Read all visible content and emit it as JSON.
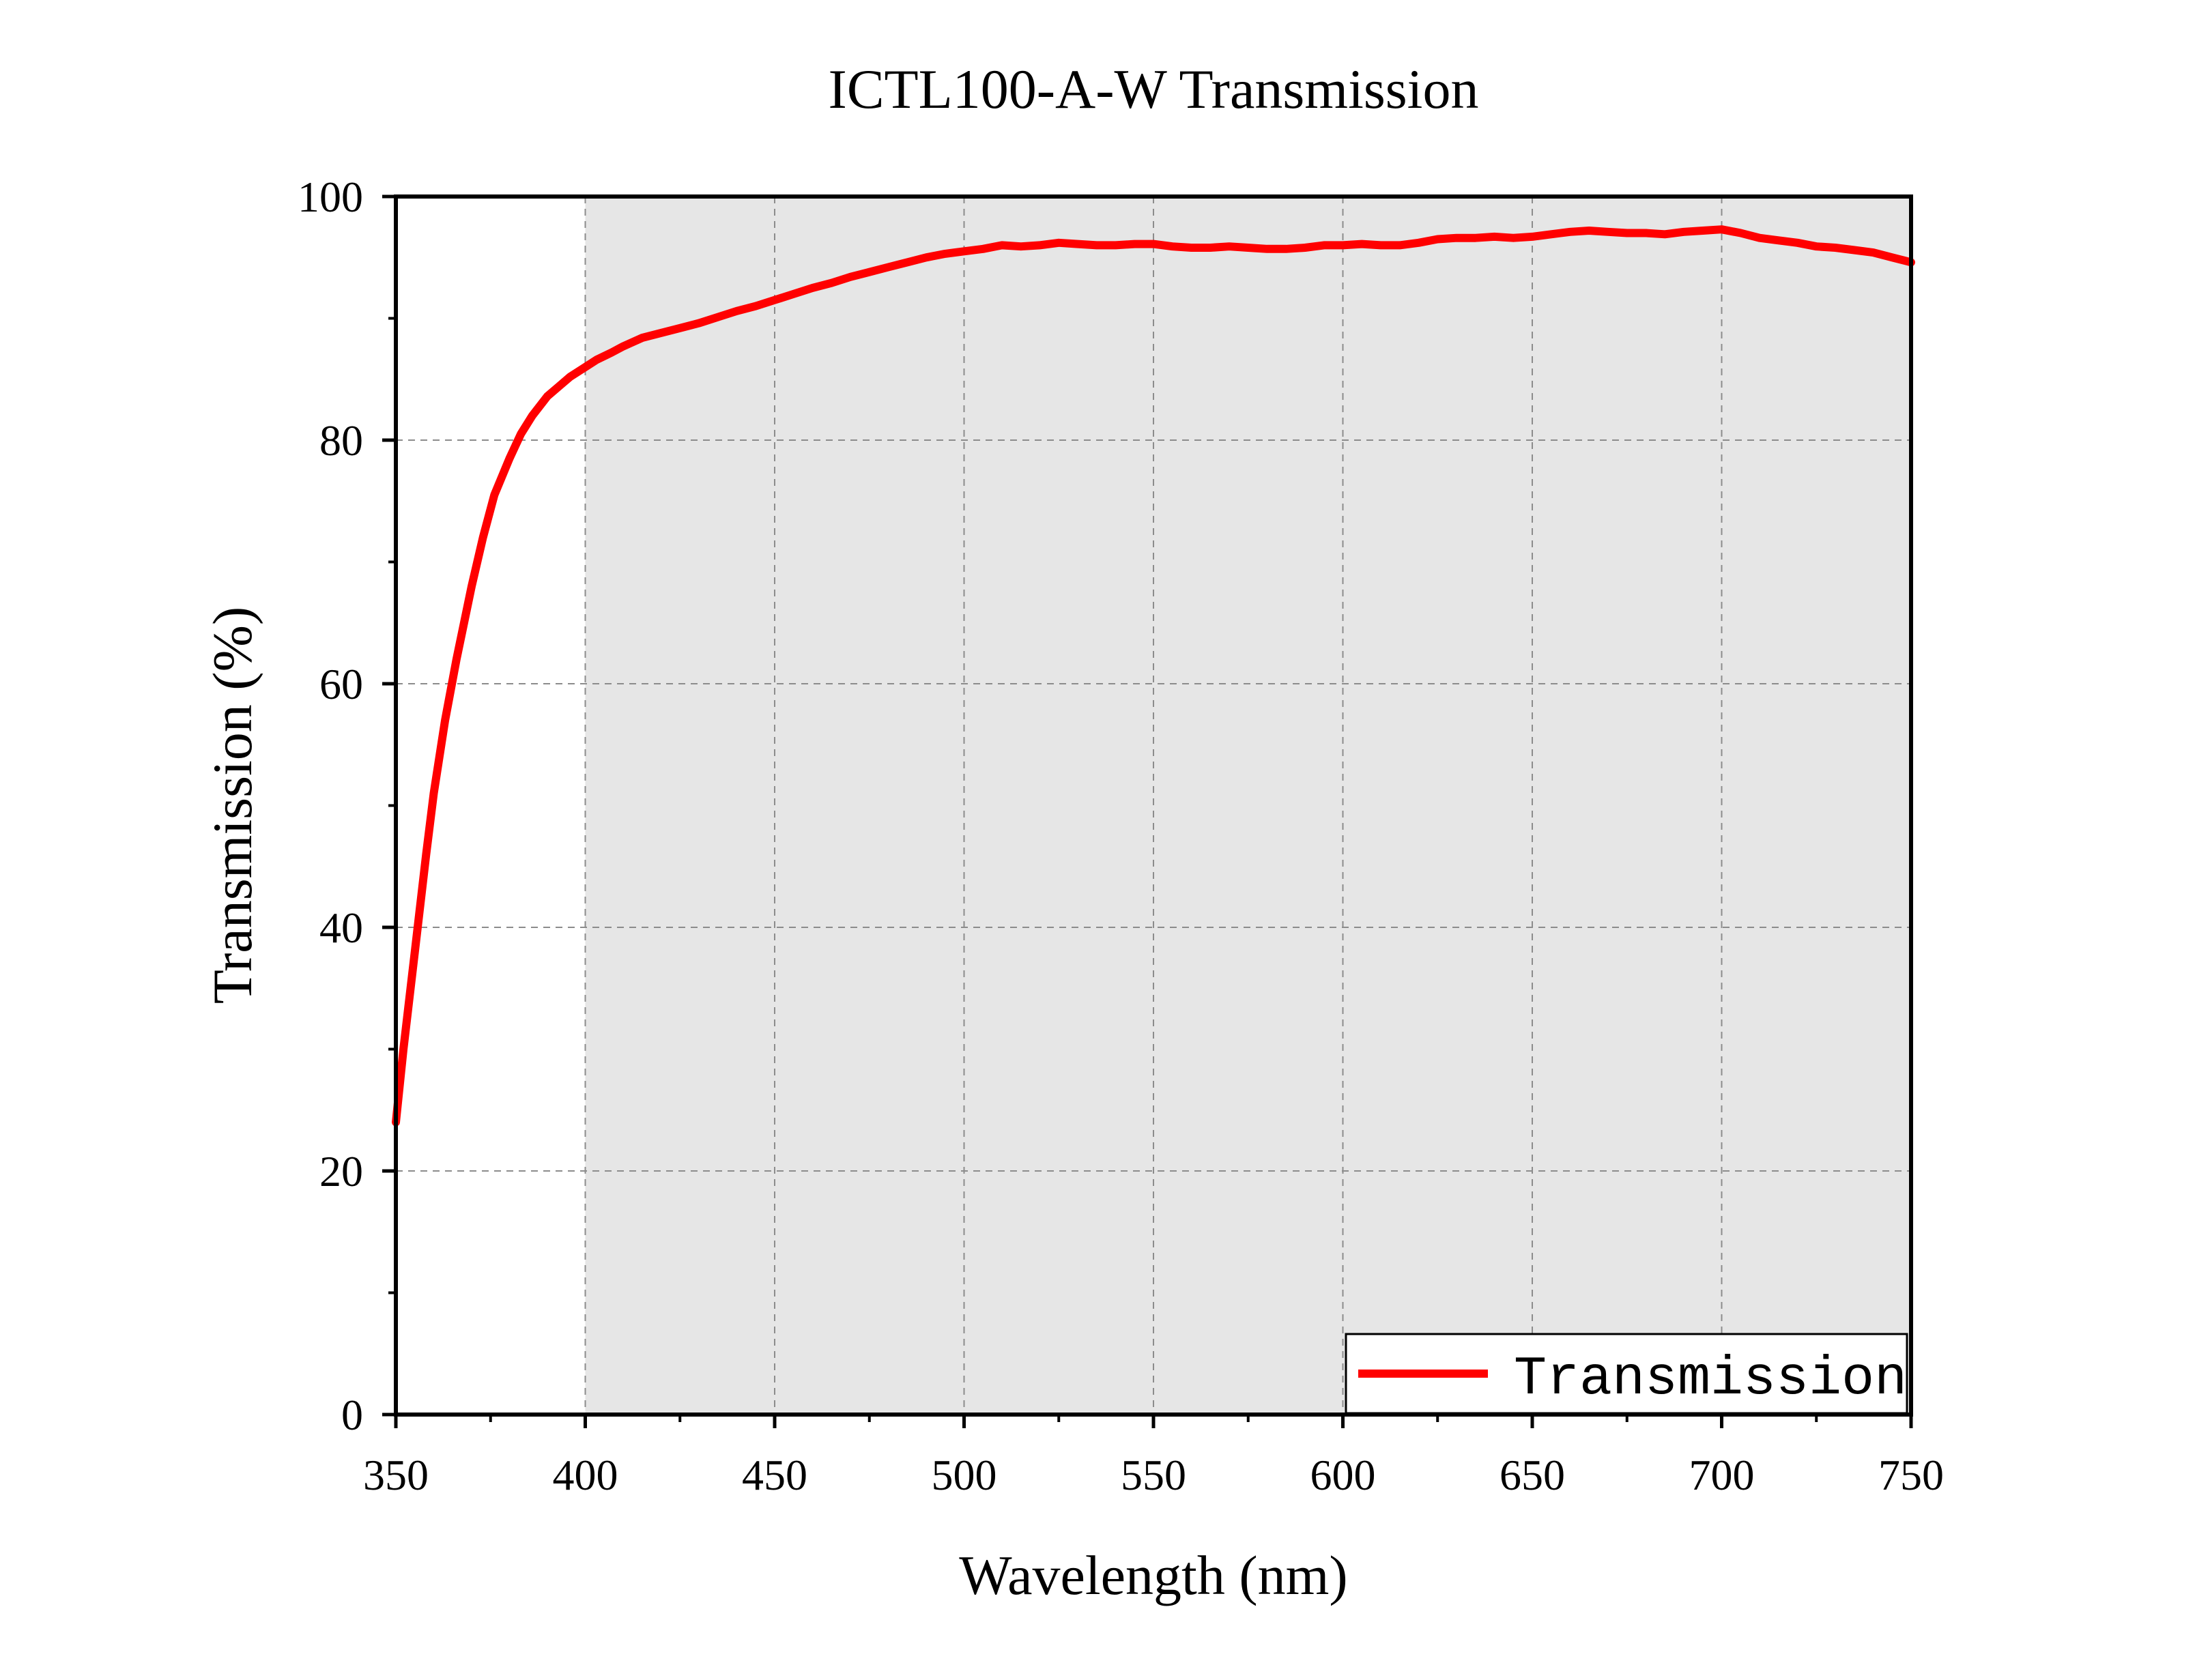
{
  "chart_data": {
    "type": "line",
    "title": "ICTL100-A-W Transmission",
    "xlabel": "Wavelength (nm)",
    "ylabel": "Transmission (%)",
    "xlim": [
      350,
      750
    ],
    "ylim": [
      0,
      100
    ],
    "x_ticks": [
      350,
      400,
      450,
      500,
      550,
      600,
      650,
      700,
      750
    ],
    "y_ticks": [
      0,
      20,
      40,
      60,
      80,
      100
    ],
    "grid": true,
    "shaded_region": {
      "x_from": 400,
      "x_to": 750,
      "color": "#e6e6e6"
    },
    "legend": {
      "placement": "bottom-right"
    },
    "series": [
      {
        "name": "Transmission",
        "color": "#ff0000",
        "x": [
          350,
          352,
          355,
          358,
          360,
          363,
          366,
          370,
          373,
          376,
          380,
          383,
          386,
          390,
          393,
          396,
          400,
          403,
          407,
          410,
          415,
          420,
          425,
          430,
          435,
          440,
          445,
          450,
          455,
          460,
          465,
          470,
          475,
          480,
          485,
          490,
          495,
          500,
          505,
          510,
          515,
          520,
          525,
          530,
          535,
          540,
          545,
          550,
          555,
          560,
          565,
          570,
          575,
          580,
          585,
          590,
          595,
          600,
          605,
          610,
          615,
          620,
          625,
          630,
          635,
          640,
          645,
          650,
          655,
          660,
          665,
          670,
          675,
          680,
          685,
          690,
          695,
          700,
          705,
          710,
          715,
          720,
          725,
          730,
          735,
          740,
          745,
          750
        ],
        "values": [
          24,
          30,
          38,
          46,
          51,
          57,
          62,
          68,
          72,
          75.5,
          78.5,
          80.5,
          82,
          83.6,
          84.4,
          85.2,
          86,
          86.6,
          87.2,
          87.7,
          88.4,
          88.8,
          89.2,
          89.6,
          90.1,
          90.6,
          91,
          91.5,
          92,
          92.5,
          92.9,
          93.4,
          93.8,
          94.2,
          94.6,
          95,
          95.3,
          95.5,
          95.7,
          96,
          95.9,
          96,
          96.2,
          96.1,
          96,
          96,
          96.1,
          96.1,
          95.9,
          95.8,
          95.8,
          95.9,
          95.8,
          95.7,
          95.7,
          95.8,
          96,
          96,
          96.1,
          96,
          96,
          96.2,
          96.5,
          96.6,
          96.6,
          96.7,
          96.6,
          96.7,
          96.9,
          97.1,
          97.2,
          97.1,
          97,
          97,
          96.9,
          97.1,
          97.2,
          97.3,
          97,
          96.6,
          96.4,
          96.2,
          95.9,
          95.8,
          95.6,
          95.4,
          95,
          94.6
        ]
      }
    ]
  }
}
